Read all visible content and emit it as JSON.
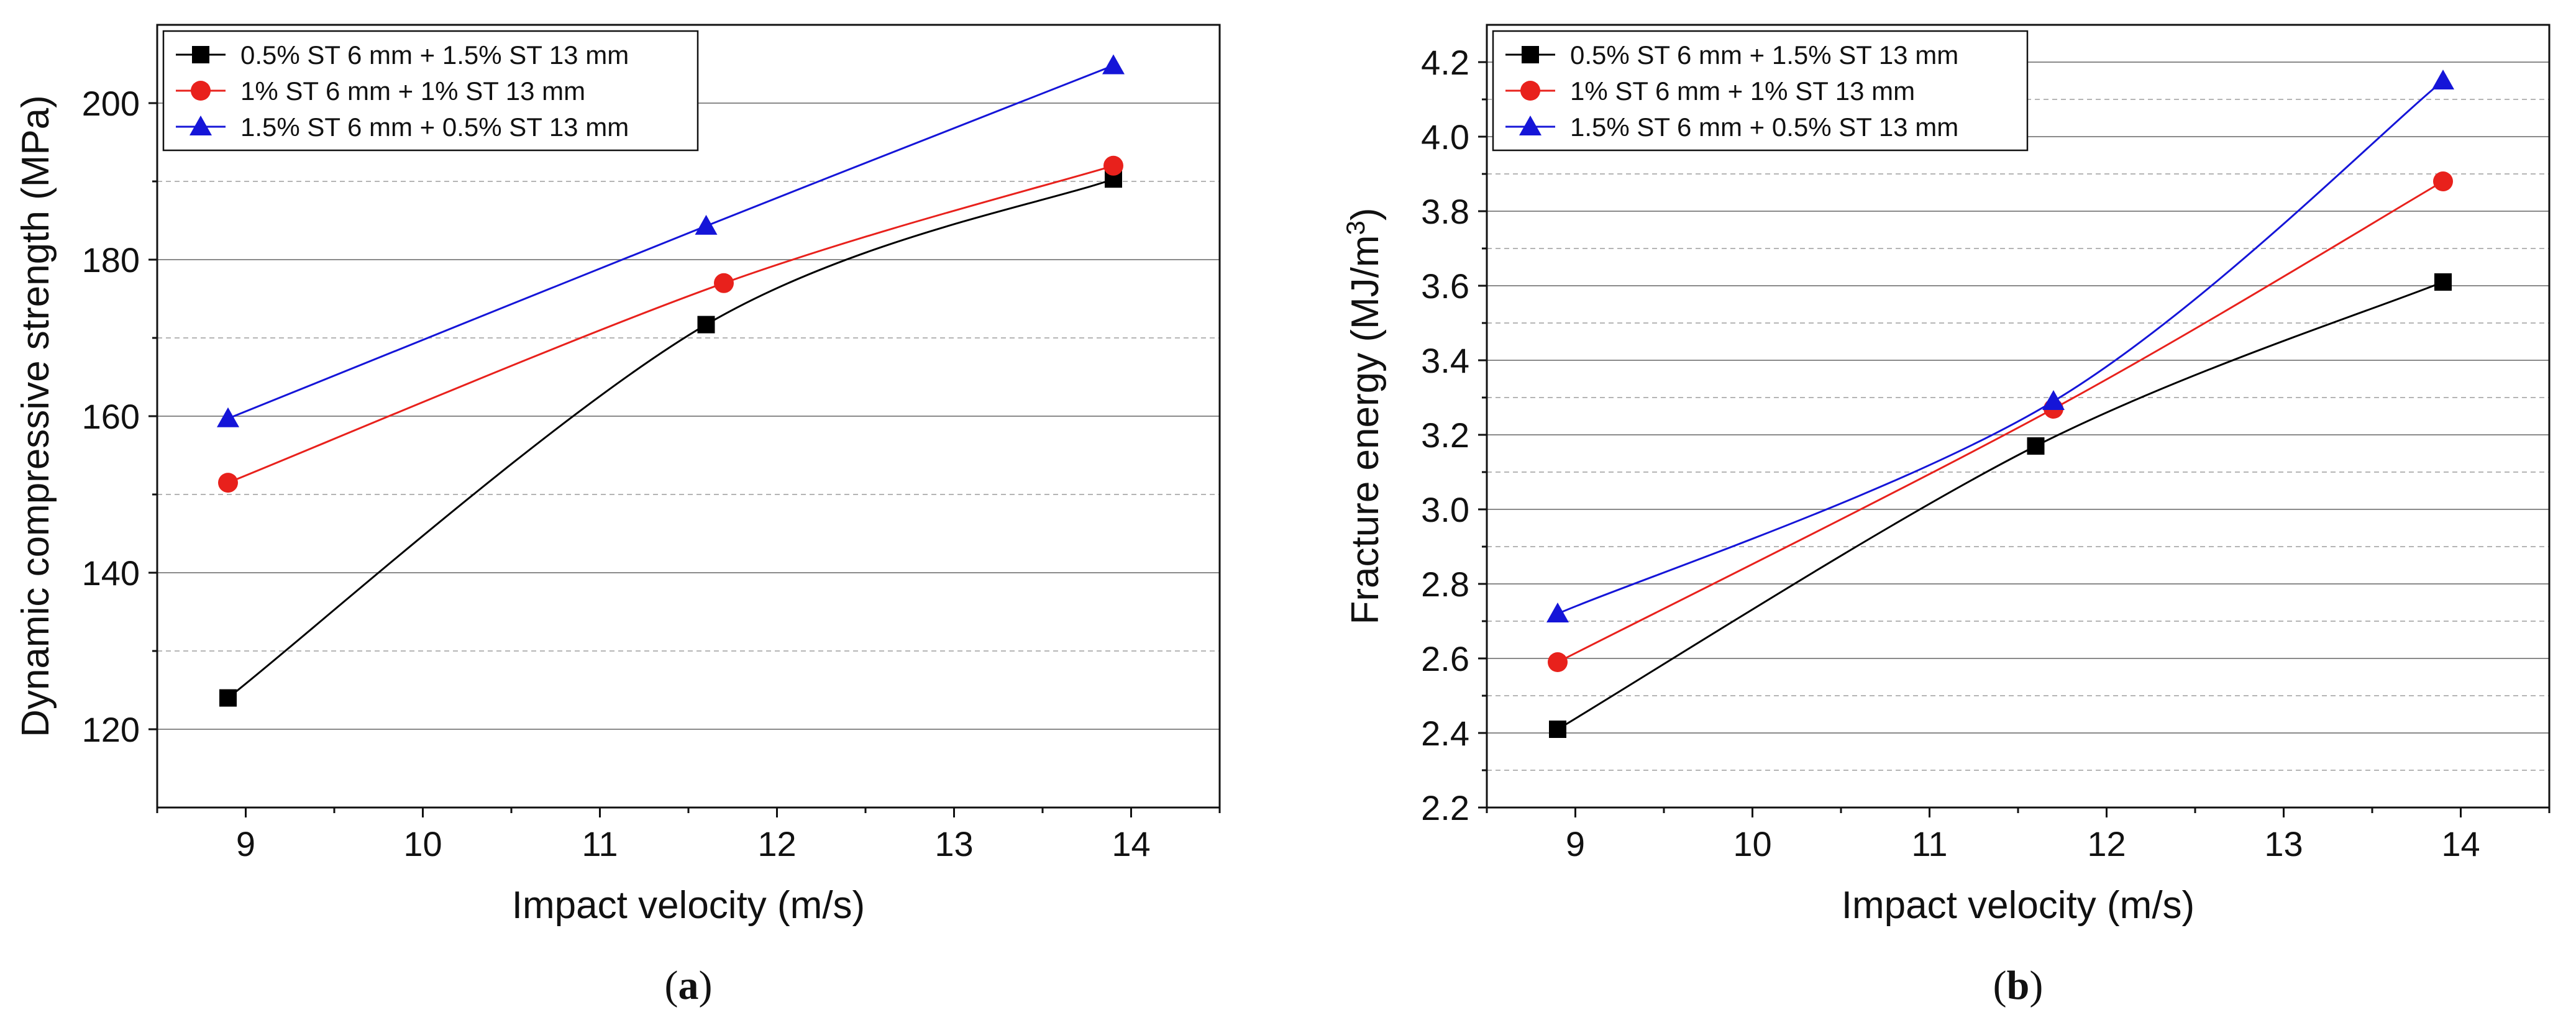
{
  "chart_data": [
    {
      "type": "line",
      "panel_label": "(a)",
      "panel_letter": "a",
      "xlabel": "Impact velocity (m/s)",
      "ylabel": "Dynamic compressive strength (MPa)",
      "xlim": [
        8.5,
        14.5
      ],
      "ylim": [
        110,
        210
      ],
      "xticks": [
        9,
        10,
        11,
        12,
        13,
        14
      ],
      "yticks": [
        120,
        140,
        160,
        180,
        200
      ],
      "minor_grid": [
        130,
        150,
        170,
        190
      ],
      "grid": true,
      "legend_position": "top-left",
      "series": [
        {
          "name": "0.5% ST 6 mm + 1.5% ST 13 mm",
          "marker": "square",
          "color": "#000000",
          "x": [
            8.9,
            11.6,
            13.9
          ],
          "y": [
            124,
            171.7,
            190.3
          ]
        },
        {
          "name": "1% ST 6 mm + 1% ST 13 mm",
          "marker": "circle",
          "color": "#e8211c",
          "x": [
            8.9,
            11.7,
            13.9
          ],
          "y": [
            151.5,
            177,
            192
          ]
        },
        {
          "name": "1.5% ST 6 mm + 0.5% ST 13 mm",
          "marker": "triangle",
          "color": "#1515d8",
          "x": [
            8.9,
            11.6,
            13.9
          ],
          "y": [
            159.7,
            184.3,
            204.8
          ]
        }
      ]
    },
    {
      "type": "line",
      "panel_label": "(b)",
      "panel_letter": "b",
      "xlabel": "Impact velocity (m/s)",
      "ylabel": "Fracture energy (MJ/m",
      "ylabel_sup": "3",
      "ylabel_end": ")",
      "xlim": [
        8.5,
        14.5
      ],
      "ylim": [
        2.2,
        4.3
      ],
      "xticks": [
        9,
        10,
        11,
        12,
        13,
        14
      ],
      "yticks": [
        "2.2",
        "2.4",
        "2.6",
        "2.8",
        "3.0",
        "3.2",
        "3.4",
        "3.6",
        "3.8",
        "4.0",
        "4.2"
      ],
      "minor_grid": [
        2.3,
        2.5,
        2.7,
        2.9,
        3.1,
        3.3,
        3.5,
        3.7,
        3.9,
        4.1
      ],
      "grid": true,
      "legend_position": "top-left",
      "series": [
        {
          "name": "0.5% ST 6 mm + 1.5% ST 13 mm",
          "marker": "square",
          "color": "#000000",
          "x": [
            8.9,
            11.6,
            13.9
          ],
          "y": [
            2.41,
            3.17,
            3.61
          ]
        },
        {
          "name": "1% ST 6 mm + 1% ST 13 mm",
          "marker": "circle",
          "color": "#e8211c",
          "x": [
            8.9,
            11.7,
            13.9
          ],
          "y": [
            2.59,
            3.27,
            3.88
          ]
        },
        {
          "name": "1.5% ST 6 mm + 0.5% ST 13 mm",
          "marker": "triangle",
          "color": "#1515d8",
          "x": [
            8.9,
            11.7,
            13.9
          ],
          "y": [
            2.72,
            3.29,
            4.15
          ]
        }
      ]
    }
  ]
}
